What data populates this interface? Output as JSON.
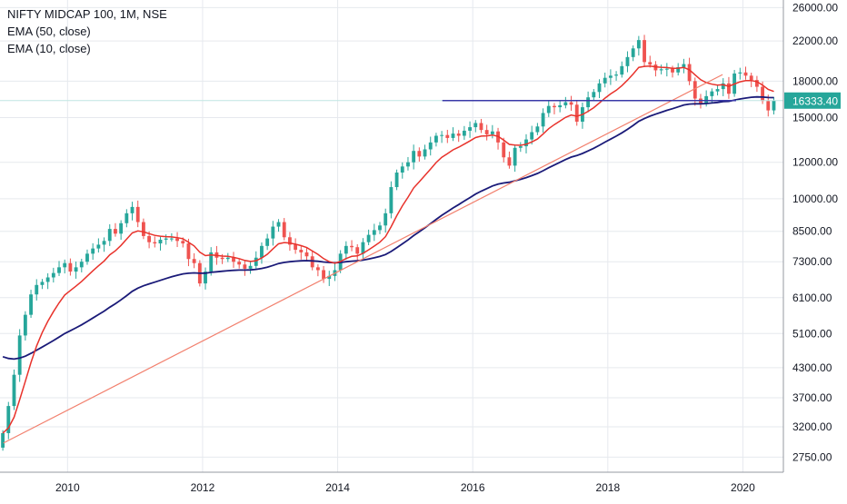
{
  "legend": {
    "title": "NIFTY MIDCAP 100, 1M, NSE",
    "ema50": "EMA (50, close)",
    "ema10": "EMA (10, close)"
  },
  "colors": {
    "up": "#26a69a",
    "down": "#ef5350",
    "ema10": "#e8322b",
    "ema50": "#1a1a78",
    "trendline": "#f2806e",
    "hline": "#3a3aa8",
    "grid": "#e6e9ee",
    "last_price_bg": "#26a69a",
    "price_line": "#bfe6e2"
  },
  "last_price_label": "16333.40",
  "chart_data": {
    "type": "candlestick",
    "title": "NIFTY MIDCAP 100, 1M, NSE",
    "scale": "log",
    "grid": true,
    "ylim": [
      2550,
      27000
    ],
    "xlim": [
      2009.0,
      2020.6
    ],
    "y_ticks": [
      "26000.00",
      "22000.00",
      "18000.00",
      "15000.00",
      "12000.00",
      "10000.00",
      "8500.00",
      "7300.00",
      "6100.00",
      "5100.00",
      "4300.00",
      "3700.00",
      "3200.00",
      "2750.00"
    ],
    "x_ticks": [
      "2010",
      "2012",
      "2014",
      "2016",
      "2018",
      "2020"
    ],
    "last_price": 16333.4,
    "close_series": [
      3100,
      3550,
      4150,
      5050,
      5600,
      6200,
      6500,
      6600,
      6750,
      6900,
      7100,
      7250,
      6950,
      7100,
      7300,
      7600,
      7800,
      7950,
      8100,
      8600,
      8400,
      8850,
      9300,
      9600,
      8900,
      8300,
      8050,
      8000,
      8150,
      8200,
      8200,
      8100,
      8000,
      7400,
      7250,
      6550,
      6950,
      7650,
      7450,
      7400,
      7450,
      7300,
      7200,
      7050,
      7150,
      7450,
      7900,
      8200,
      8700,
      8900,
      8250,
      7950,
      7750,
      7650,
      7500,
      7100,
      7000,
      6700,
      6800,
      7000,
      7600,
      7900,
      7850,
      7600,
      8050,
      8350,
      8550,
      8750,
      9300,
      10600,
      11400,
      11750,
      12000,
      12700,
      12350,
      12800,
      13250,
      13700,
      13750,
      13550,
      13850,
      13700,
      14050,
      14300,
      14600,
      14100,
      13800,
      14000,
      13250,
      12300,
      11800,
      12900,
      13000,
      13450,
      13950,
      14350,
      15350,
      15900,
      15800,
      15950,
      16200,
      16000,
      14700,
      15800,
      16600,
      17050,
      17800,
      18300,
      18500,
      18600,
      19400,
      20300,
      21200,
      22100,
      19800,
      19550,
      19000,
      19100,
      19150,
      18800,
      19300,
      19600,
      18000,
      16500,
      16100,
      16700,
      17100,
      17300,
      17800,
      16900,
      18700,
      18800,
      18500,
      18100,
      17500,
      16300,
      15550,
      16333.4
    ],
    "ohlc_start": 2009.0,
    "ohlc_step_months": 1,
    "ema_periods": [
      10,
      50
    ],
    "ema_seed_ema50": 4600,
    "trendline": {
      "from": {
        "x": 2009.05,
        "y": 2950
      },
      "to": {
        "x": 2019.7,
        "y": 18600
      }
    },
    "horizontal_line": {
      "from_x": 2015.55,
      "to_x": 2019.9,
      "y": 16333.4
    }
  }
}
